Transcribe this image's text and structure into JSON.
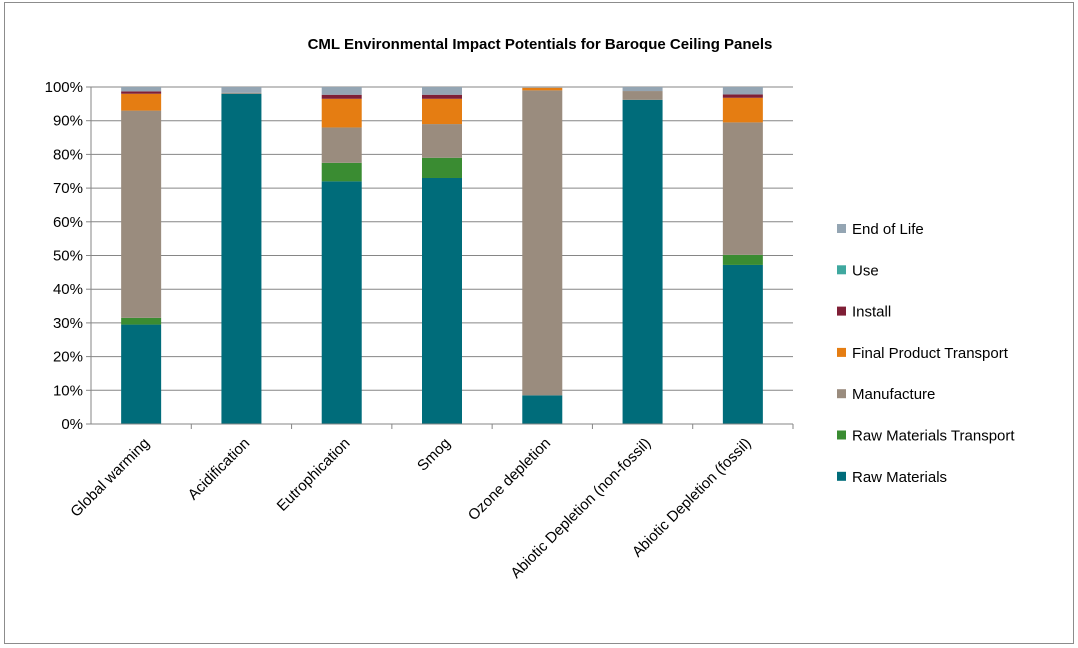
{
  "chart_data": {
    "type": "bar",
    "stacked": true,
    "percent": true,
    "title": "CML Environmental Impact Potentials for Baroque Ceiling Panels",
    "xlabel": "",
    "ylabel": "",
    "ylim": [
      0,
      100
    ],
    "yticks": [
      "0%",
      "10%",
      "20%",
      "30%",
      "40%",
      "50%",
      "60%",
      "70%",
      "80%",
      "90%",
      "100%"
    ],
    "grid": true,
    "legend": "right",
    "categories": [
      "Global warming",
      "Acidification",
      "Eutrophication",
      "Smog",
      "Ozone depletion",
      "Abiotic Depletion (non-fossil)",
      "Abiotic Depletion (fossil)"
    ],
    "series": [
      {
        "name": "Raw Materials",
        "color": "#006c7a",
        "values": [
          29.5,
          98,
          72,
          73,
          8.5,
          96.2,
          47.2
        ]
      },
      {
        "name": "Raw Materials Transport",
        "color": "#3a8c32",
        "values": [
          2,
          0,
          5.5,
          6,
          0,
          0,
          3
        ]
      },
      {
        "name": "Manufacture",
        "color": "#9a8c7e",
        "values": [
          61.5,
          0.3,
          10.5,
          10,
          90.5,
          2.6,
          39.3
        ]
      },
      {
        "name": "Final Product Transport",
        "color": "#e57d12",
        "values": [
          5,
          0,
          8.5,
          7.5,
          0.8,
          0,
          7.3
        ]
      },
      {
        "name": "Install",
        "color": "#7f1f36",
        "values": [
          0.7,
          0,
          1.2,
          1.2,
          0,
          0,
          1.0
        ]
      },
      {
        "name": "Use",
        "color": "#3fa89f",
        "values": [
          0,
          0,
          0,
          0,
          0,
          0,
          0
        ]
      },
      {
        "name": "End of Life",
        "color": "#94a5b3",
        "values": [
          1.3,
          1.7,
          2.3,
          2.3,
          0.2,
          1.2,
          2.2
        ]
      }
    ]
  }
}
